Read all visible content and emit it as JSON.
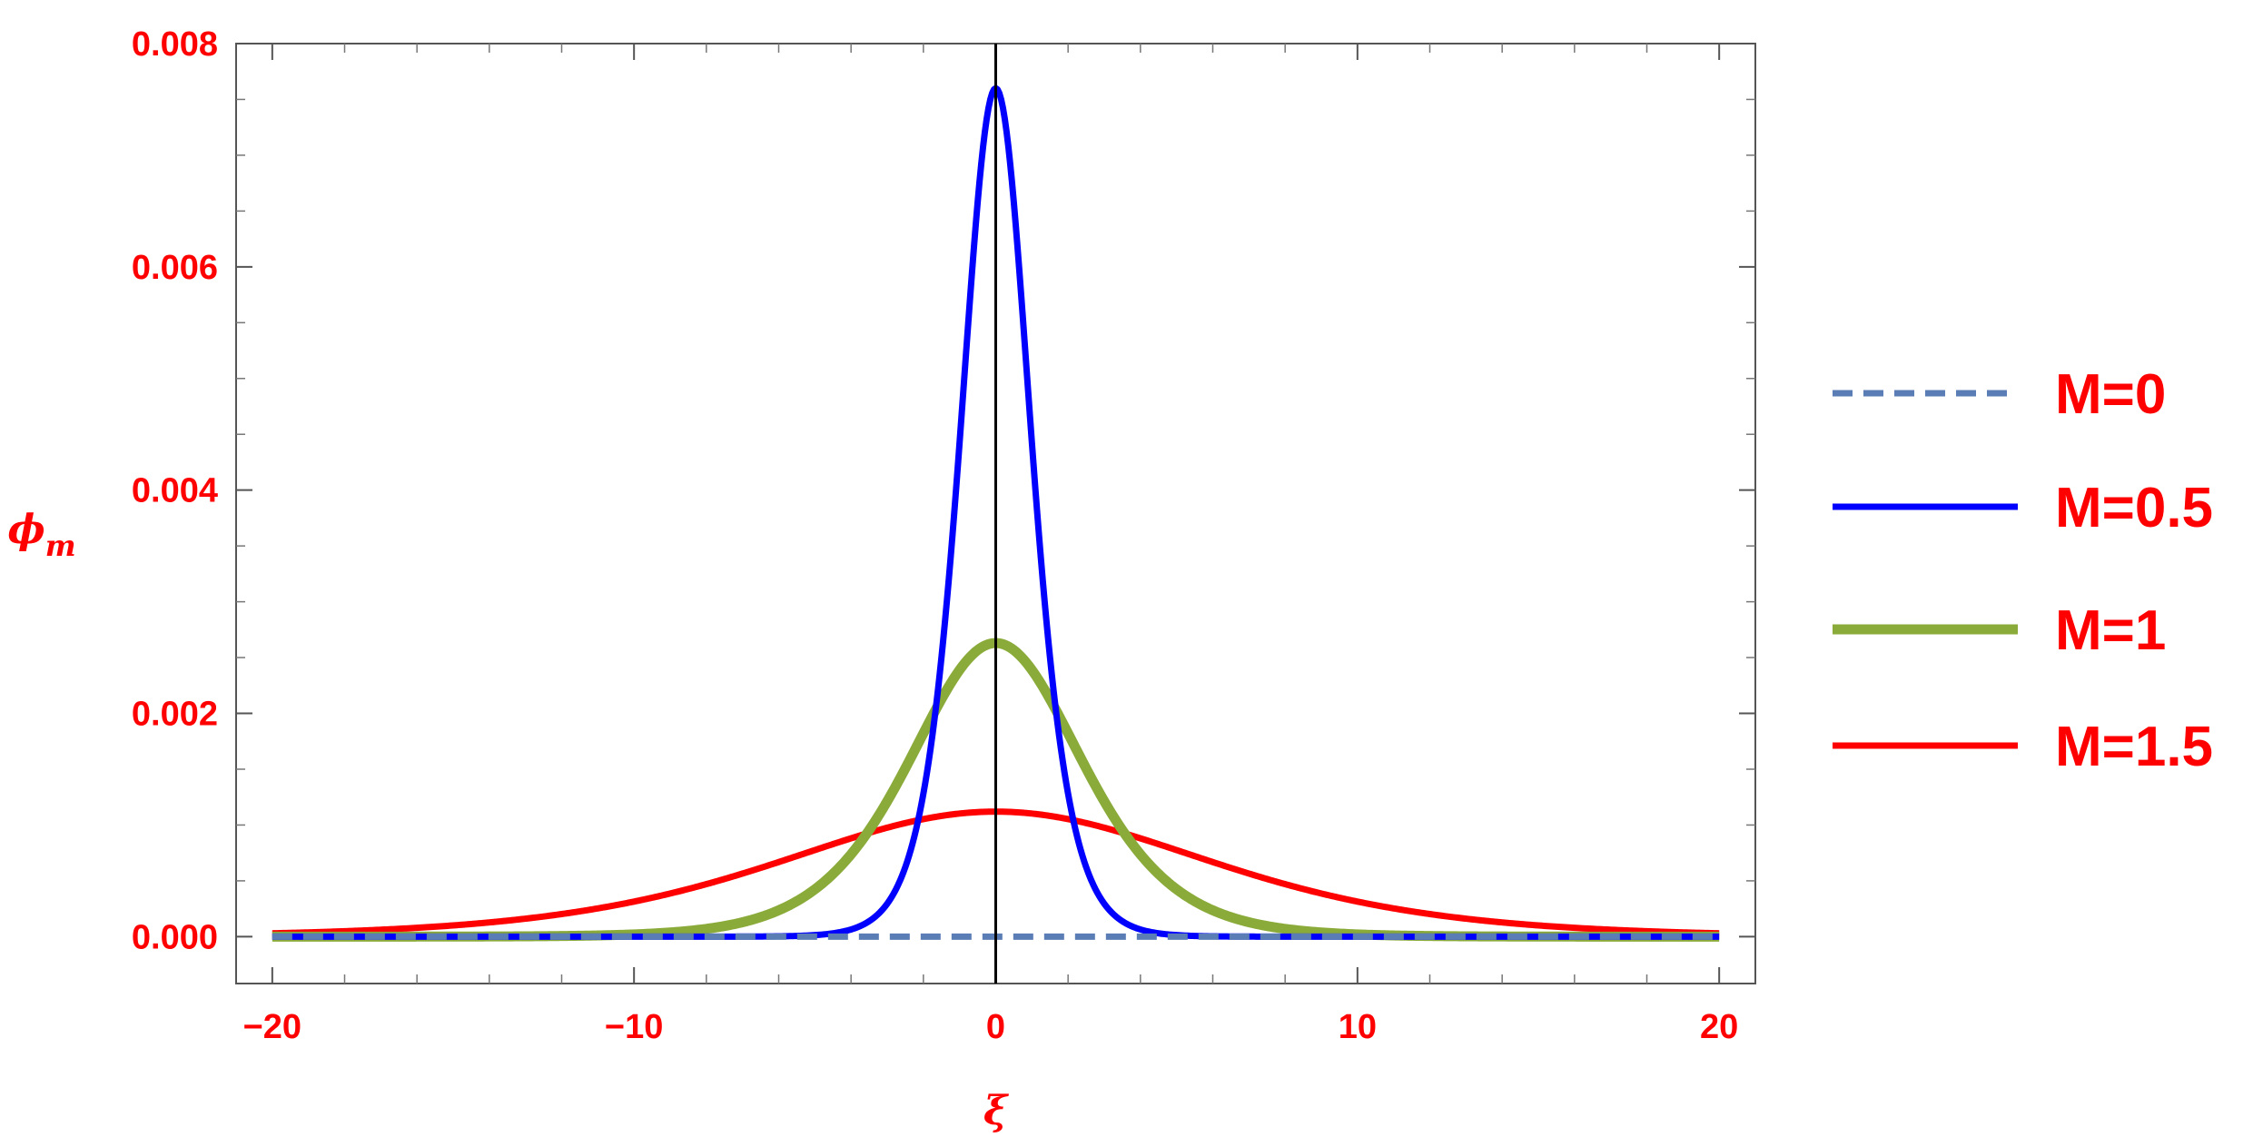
{
  "chart_data": {
    "type": "line",
    "title": "",
    "xlabel": "ξ",
    "ylabel_main": "ϕ",
    "ylabel_sub": "m",
    "xlim": [
      -21,
      21
    ],
    "ylim": [
      -0.00042,
      0.008
    ],
    "x_ticks": [
      -20,
      -10,
      0,
      10,
      20
    ],
    "x_tick_labels": [
      "−20",
      "−10",
      "0",
      "10",
      "20"
    ],
    "y_ticks": [
      0,
      0.002,
      0.004,
      0.006,
      0.008
    ],
    "y_tick_labels": [
      "0.000",
      "0.002",
      "0.004",
      "0.006",
      "0.008"
    ],
    "x_range": [
      -20,
      20
    ],
    "grid": false,
    "vertical_line_at_x": 0,
    "legend_position": "right",
    "series": [
      {
        "name": "M=0",
        "peak": 0,
        "width": 1,
        "color": "#5b7db5",
        "dashed": true,
        "stroke": 7
      },
      {
        "name": "M=0.5",
        "peak": 0.0076,
        "width": 1.3,
        "color": "#0000ff",
        "dashed": false,
        "stroke": 7
      },
      {
        "name": "M=1",
        "peak": 0.00263,
        "width": 3.2,
        "color": "#8aab3a",
        "dashed": false,
        "stroke": 11
      },
      {
        "name": "M=1.5",
        "peak": 0.00112,
        "width": 8.0,
        "color": "#ff0000",
        "dashed": false,
        "stroke": 7
      }
    ]
  }
}
